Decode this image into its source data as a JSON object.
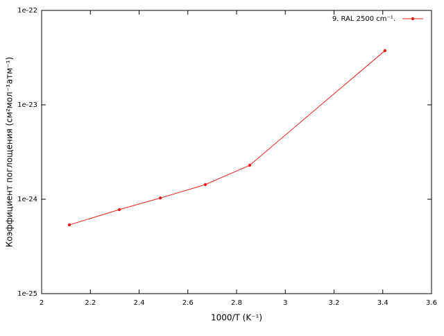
{
  "chart_data": {
    "type": "line",
    "xlabel": "1000/T (K⁻¹)",
    "ylabel": "Коэффициент поглощения (см²мол⁻¹атм⁻¹)",
    "log_y": true,
    "xlim": [
      2,
      3.6
    ],
    "xticks": [
      2,
      2.2,
      2.4,
      2.6,
      2.8,
      3,
      3.2,
      3.4,
      3.6
    ],
    "ylim": [
      1e-25,
      1e-22
    ],
    "yticks": [
      {
        "value": 1e-25,
        "label": "1e-25"
      },
      {
        "value": 1e-24,
        "label": "1e-24"
      },
      {
        "value": 1e-23,
        "label": "1e-23"
      },
      {
        "value": 1e-22,
        "label": "1e-22"
      }
    ],
    "legend": "top-right",
    "x": [
      2.114,
      2.319,
      2.487,
      2.672,
      2.854,
      3.409
    ],
    "series": [
      {
        "name": "9. RAL 2500 cm⁻¹.",
        "color": "#e3211c",
        "values": [
          5.35e-25,
          7.77e-25,
          1.03e-24,
          1.43e-24,
          2.29e-24,
          3.75e-23
        ]
      }
    ]
  }
}
